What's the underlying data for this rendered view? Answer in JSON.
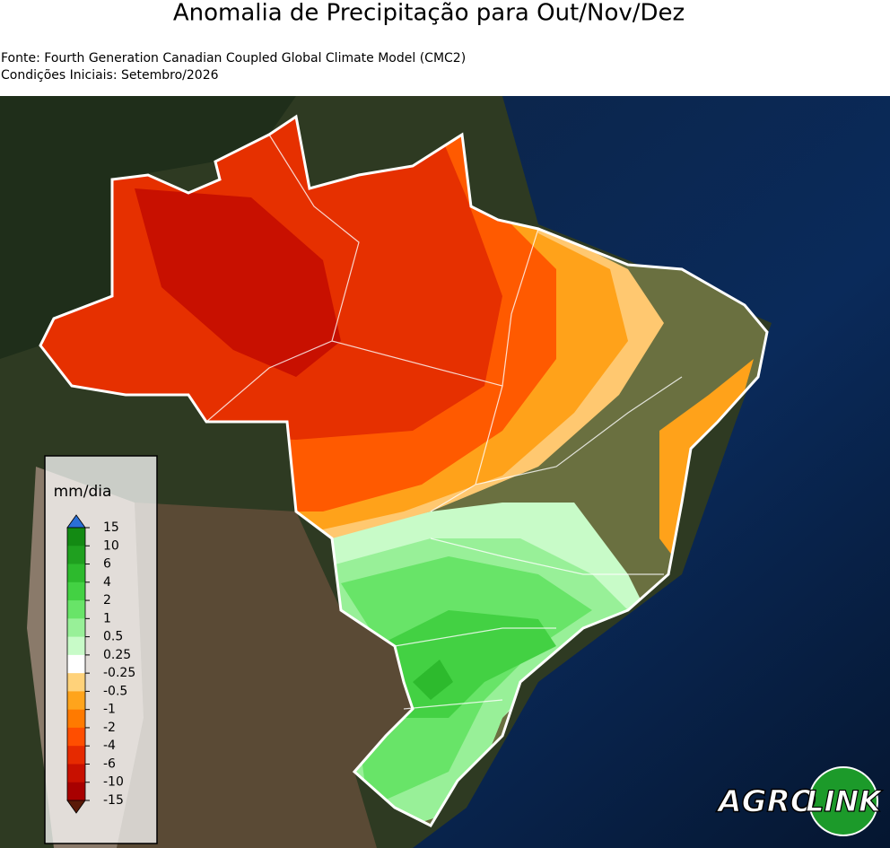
{
  "header": {
    "title": "Anomalia de Precipitação para Out/Nov/Dez",
    "source": "Fonte: Fourth Generation Canadian Coupled Global Climate Model (CMC2)",
    "initial_conditions": "Condições Iniciais: Setembro/2026"
  },
  "legend": {
    "unit": "mm/dia",
    "ticks": [
      15,
      10,
      6,
      4,
      2,
      1,
      0.5,
      0.25,
      -0.25,
      -0.5,
      -1,
      -2,
      -4,
      -6,
      -10,
      -15
    ],
    "colors": [
      "#2a6fd6",
      "#138a13",
      "#1fa01f",
      "#2dba2d",
      "#43d143",
      "#68e468",
      "#98f098",
      "#c8fbc8",
      "#ffffff",
      "#ffd27a",
      "#ffa41c",
      "#ff7a00",
      "#ff4e00",
      "#e62a00",
      "#c81000",
      "#a80000",
      "#5a1a08"
    ]
  },
  "logo": {
    "part1": "AGRO",
    "part2": "LINK"
  }
}
